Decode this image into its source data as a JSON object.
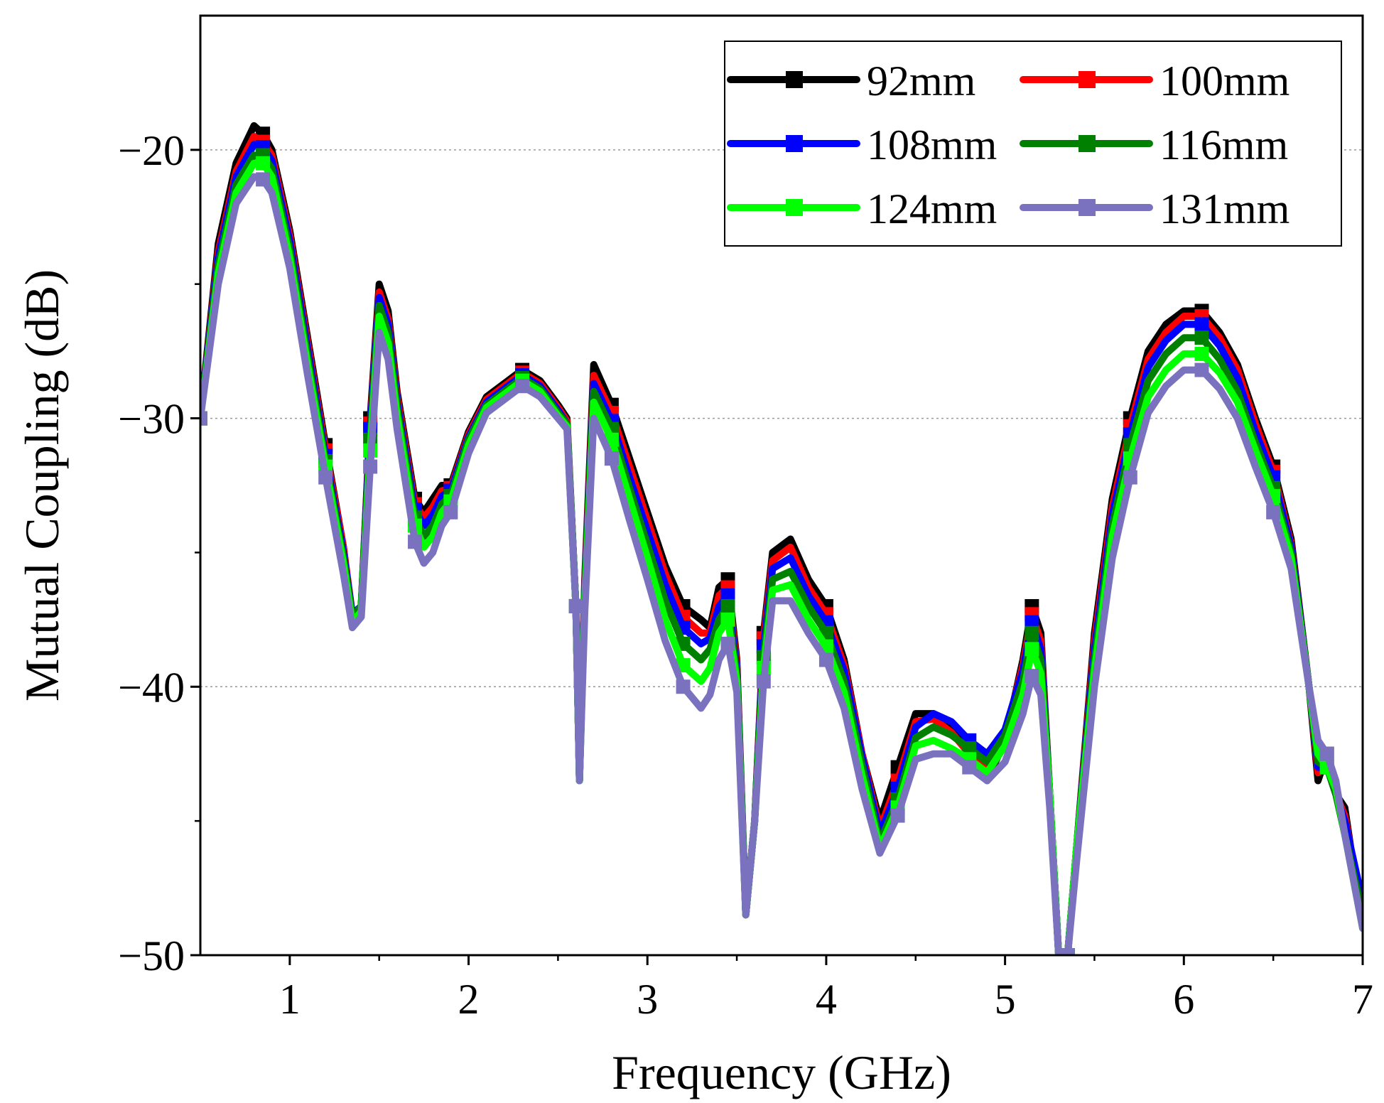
{
  "chart_data": {
    "type": "line",
    "title": "",
    "xlabel": "Frequency (GHz)",
    "ylabel": "Mutual Coupling (dB)",
    "xlim": [
      0.5,
      7
    ],
    "ylim": [
      -50,
      -15
    ],
    "xticks": [
      1,
      2,
      3,
      4,
      5,
      6,
      7
    ],
    "xtick_labels": [
      "1",
      "2",
      "3",
      "4",
      "5",
      "6",
      "7"
    ],
    "yticks": [
      -50,
      -40,
      -30,
      -20
    ],
    "ytick_labels": [
      "−50",
      "−40",
      "−30",
      "−20"
    ],
    "grid": "horizontal dotted",
    "legend_position": "top-right",
    "x": [
      0.5,
      0.6,
      0.7,
      0.8,
      0.85,
      0.9,
      1.0,
      1.1,
      1.2,
      1.3,
      1.35,
      1.4,
      1.45,
      1.5,
      1.55,
      1.6,
      1.7,
      1.75,
      1.8,
      1.85,
      1.9,
      2.0,
      2.1,
      2.2,
      2.3,
      2.4,
      2.5,
      2.55,
      2.6,
      2.62,
      2.65,
      2.7,
      2.8,
      2.9,
      3.0,
      3.1,
      3.2,
      3.3,
      3.35,
      3.4,
      3.45,
      3.5,
      3.55,
      3.6,
      3.65,
      3.7,
      3.8,
      3.9,
      4.0,
      4.1,
      4.2,
      4.3,
      4.4,
      4.5,
      4.6,
      4.7,
      4.8,
      4.9,
      5.0,
      5.1,
      5.15,
      5.2,
      5.25,
      5.3,
      5.35,
      5.4,
      5.5,
      5.6,
      5.7,
      5.8,
      5.9,
      6.0,
      6.1,
      6.2,
      6.3,
      6.4,
      6.5,
      6.6,
      6.7,
      6.75,
      6.8,
      6.85,
      6.9,
      7.0
    ],
    "series": [
      {
        "name": "92mm",
        "color": "#000000",
        "values": [
          -30,
          -23.5,
          -20.5,
          -19.1,
          -19.4,
          -20.0,
          -23.0,
          -27.0,
          -31.0,
          -34.8,
          -37.5,
          -37.0,
          -30.0,
          -25.0,
          -26.0,
          -29.0,
          -33.0,
          -33.5,
          -33.0,
          -32.5,
          -32.5,
          -30.5,
          -29.2,
          -28.7,
          -28.2,
          -28.6,
          -29.5,
          -30.0,
          -37.0,
          -43.5,
          -36.0,
          -28.0,
          -29.5,
          -31.5,
          -33.5,
          -35.5,
          -37.0,
          -37.5,
          -37.8,
          -36.3,
          -36.0,
          -39.0,
          -48.5,
          -45.0,
          -38.0,
          -35.0,
          -34.5,
          -36.0,
          -37.0,
          -39.0,
          -42.5,
          -45.0,
          -43.0,
          -41.0,
          -41.0,
          -41.5,
          -42.5,
          -43.5,
          -42.0,
          -39.0,
          -37.0,
          -38.0,
          -44.0,
          -50.0,
          -50.0,
          -46.0,
          -38.0,
          -33.0,
          -30.0,
          -27.5,
          -26.5,
          -26.0,
          -26.0,
          -26.8,
          -28.0,
          -30.0,
          -31.8,
          -34.5,
          -40.0,
          -43.5,
          -42.5,
          -44.0,
          -44.5,
          -49.0
        ]
      },
      {
        "name": "100mm",
        "color": "#ff0000",
        "values": [
          -30,
          -23.8,
          -20.8,
          -19.5,
          -19.7,
          -20.2,
          -23.2,
          -27.2,
          -31.2,
          -34.8,
          -37.3,
          -37.0,
          -30.2,
          -25.3,
          -26.3,
          -29.2,
          -33.2,
          -33.7,
          -33.3,
          -32.7,
          -32.6,
          -30.6,
          -29.3,
          -28.8,
          -28.3,
          -28.7,
          -29.6,
          -30.1,
          -37.0,
          -43.5,
          -36.2,
          -28.4,
          -29.8,
          -31.8,
          -33.8,
          -35.8,
          -37.4,
          -38.0,
          -38.0,
          -36.6,
          -36.3,
          -39.2,
          -48.5,
          -45.0,
          -38.2,
          -35.3,
          -34.8,
          -36.3,
          -37.3,
          -39.2,
          -42.5,
          -45.3,
          -43.5,
          -41.3,
          -41.2,
          -41.7,
          -42.5,
          -43.0,
          -41.8,
          -39.2,
          -37.3,
          -38.3,
          -44.0,
          -50.0,
          -50.0,
          -46.0,
          -38.3,
          -33.3,
          -30.3,
          -27.8,
          -26.8,
          -26.2,
          -26.2,
          -27.0,
          -28.2,
          -30.2,
          -32.0,
          -34.7,
          -40.0,
          -43.2,
          -43.0,
          -44.0,
          -44.8,
          -48.5
        ]
      },
      {
        "name": "108mm",
        "color": "#0000ff",
        "values": [
          -30,
          -24.0,
          -21.0,
          -19.8,
          -19.9,
          -20.4,
          -23.4,
          -27.4,
          -31.4,
          -35.0,
          -37.3,
          -37.0,
          -30.4,
          -25.5,
          -26.5,
          -29.4,
          -33.4,
          -34.0,
          -33.6,
          -32.9,
          -32.7,
          -30.7,
          -29.4,
          -28.9,
          -28.4,
          -28.8,
          -29.7,
          -30.2,
          -37.0,
          -43.5,
          -36.4,
          -28.7,
          -30.1,
          -32.2,
          -34.2,
          -36.2,
          -37.8,
          -38.4,
          -38.2,
          -37.0,
          -36.6,
          -39.4,
          -48.5,
          -45.0,
          -38.5,
          -35.6,
          -35.2,
          -36.6,
          -37.6,
          -39.4,
          -42.6,
          -45.5,
          -43.8,
          -41.5,
          -41.0,
          -41.3,
          -42.0,
          -42.5,
          -41.6,
          -39.4,
          -37.6,
          -38.6,
          -44.0,
          -50.0,
          -50.0,
          -46.0,
          -38.6,
          -33.6,
          -30.6,
          -28.1,
          -27.1,
          -26.5,
          -26.5,
          -27.3,
          -28.5,
          -30.5,
          -32.2,
          -34.8,
          -40.0,
          -43.0,
          -43.0,
          -44.0,
          -45.0,
          -48.0
        ]
      },
      {
        "name": "116mm",
        "color": "#008000",
        "values": [
          -30,
          -24.3,
          -21.3,
          -20.2,
          -20.2,
          -20.7,
          -23.7,
          -27.7,
          -31.6,
          -35.2,
          -37.4,
          -37.0,
          -30.8,
          -25.8,
          -26.8,
          -29.6,
          -33.7,
          -34.4,
          -34.0,
          -33.2,
          -32.9,
          -30.8,
          -29.5,
          -29.0,
          -28.5,
          -28.9,
          -29.8,
          -30.2,
          -37.0,
          -43.5,
          -36.6,
          -29.0,
          -30.4,
          -32.6,
          -34.7,
          -36.8,
          -38.4,
          -39.0,
          -38.6,
          -37.5,
          -37.0,
          -39.6,
          -48.5,
          -45.0,
          -38.9,
          -36.0,
          -35.7,
          -37.0,
          -38.0,
          -39.8,
          -42.9,
          -45.8,
          -44.2,
          -41.9,
          -41.5,
          -41.8,
          -42.3,
          -42.8,
          -41.8,
          -39.8,
          -38.0,
          -39.0,
          -44.0,
          -50.0,
          -50.0,
          -46.0,
          -39.0,
          -34.0,
          -31.0,
          -28.6,
          -27.6,
          -27.0,
          -27.0,
          -27.8,
          -29.0,
          -30.9,
          -32.6,
          -35.0,
          -40.0,
          -42.8,
          -43.0,
          -44.0,
          -45.5,
          -48.5
        ]
      },
      {
        "name": "124mm",
        "color": "#00ff00",
        "values": [
          -30,
          -24.6,
          -21.6,
          -20.5,
          -20.5,
          -21.0,
          -24.0,
          -28.0,
          -31.8,
          -35.4,
          -37.6,
          -37.2,
          -31.2,
          -26.2,
          -27.2,
          -29.9,
          -34.0,
          -34.8,
          -34.4,
          -33.5,
          -33.1,
          -31.0,
          -29.6,
          -29.1,
          -28.6,
          -29.0,
          -29.9,
          -30.3,
          -37.0,
          -43.5,
          -36.8,
          -29.4,
          -30.8,
          -33.0,
          -35.2,
          -37.5,
          -39.2,
          -39.8,
          -39.3,
          -38.0,
          -37.5,
          -39.8,
          -48.5,
          -45.0,
          -39.3,
          -36.4,
          -36.2,
          -37.5,
          -38.5,
          -40.2,
          -43.3,
          -46.0,
          -44.5,
          -42.2,
          -42.0,
          -42.3,
          -42.7,
          -43.2,
          -42.2,
          -40.3,
          -38.6,
          -39.5,
          -44.0,
          -50.0,
          -50.0,
          -46.0,
          -39.4,
          -34.4,
          -31.5,
          -29.2,
          -28.2,
          -27.6,
          -27.6,
          -28.3,
          -29.4,
          -31.2,
          -32.9,
          -35.2,
          -40.0,
          -42.5,
          -43.0,
          -43.8,
          -45.5,
          -49.0
        ]
      },
      {
        "name": "131mm",
        "color": "#7b72bf",
        "values": [
          -30,
          -25.0,
          -22.0,
          -21.0,
          -21.1,
          -21.6,
          -24.4,
          -28.4,
          -32.2,
          -35.8,
          -37.8,
          -37.4,
          -31.8,
          -26.8,
          -27.8,
          -30.4,
          -34.6,
          -35.4,
          -35.0,
          -34.0,
          -33.5,
          -31.3,
          -29.8,
          -29.3,
          -28.8,
          -29.2,
          -30.0,
          -30.4,
          -37.0,
          -43.5,
          -37.2,
          -30.0,
          -31.5,
          -33.8,
          -36.0,
          -38.3,
          -40.0,
          -40.8,
          -40.3,
          -39.0,
          -38.4,
          -40.2,
          -48.5,
          -45.0,
          -39.8,
          -36.8,
          -36.8,
          -38.0,
          -39.0,
          -40.8,
          -43.8,
          -46.2,
          -44.8,
          -42.7,
          -42.5,
          -42.5,
          -43.0,
          -43.5,
          -42.8,
          -41.0,
          -39.6,
          -40.3,
          -44.5,
          -50.0,
          -50.0,
          -46.5,
          -40.0,
          -35.2,
          -32.2,
          -29.8,
          -28.8,
          -28.2,
          -28.2,
          -28.9,
          -30.0,
          -31.8,
          -33.5,
          -35.6,
          -40.0,
          -42.0,
          -42.5,
          -43.5,
          -45.5,
          -49.0
        ]
      }
    ]
  }
}
